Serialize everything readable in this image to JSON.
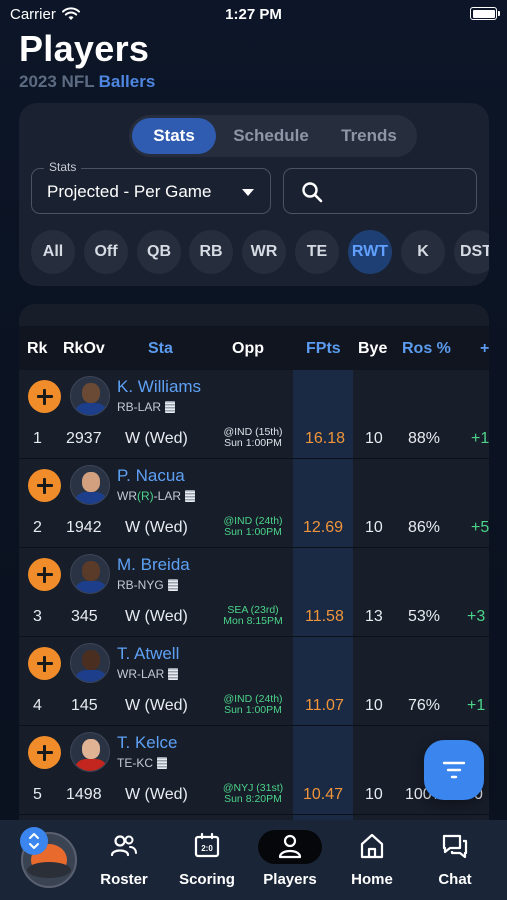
{
  "status_bar": {
    "carrier": "Carrier",
    "time": "1:27 PM"
  },
  "header": {
    "title": "Players",
    "season": "2023 NFL",
    "league": "Ballers"
  },
  "filters": {
    "tabs": [
      {
        "label": "Stats",
        "active": true
      },
      {
        "label": "Schedule",
        "active": false
      },
      {
        "label": "Trends",
        "active": false
      }
    ],
    "stats_select": {
      "label": "Stats",
      "value": "Projected - Per Game"
    },
    "search": {
      "placeholder": ""
    },
    "positions": [
      {
        "label": "All",
        "active": false
      },
      {
        "label": "Off",
        "active": false
      },
      {
        "label": "QB",
        "active": false
      },
      {
        "label": "RB",
        "active": false
      },
      {
        "label": "WR",
        "active": false
      },
      {
        "label": "TE",
        "active": false
      },
      {
        "label": "RWT",
        "active": true
      },
      {
        "label": "K",
        "active": false
      },
      {
        "label": "DST",
        "active": false
      }
    ]
  },
  "table": {
    "columns": {
      "rk": "Rk",
      "rkov": "RkOv",
      "sta": "Sta",
      "opp": "Opp",
      "fpts": "FPts",
      "bye": "Bye",
      "ros": "Ros %",
      "plus": "+/-"
    },
    "rows": [
      {
        "rk": "1",
        "rkov": "2937",
        "name": "K. Williams",
        "pos": "RB",
        "team": "LAR",
        "injury": "",
        "sta": "W (Wed)",
        "opp_line1": "@IND (15th)",
        "opp_line2": "Sun 1:00PM",
        "opp_green": false,
        "fpts": "16.18",
        "bye": "10",
        "ros": "88%",
        "change": "+1"
      },
      {
        "rk": "2",
        "rkov": "1942",
        "name": "P. Nacua",
        "pos": "WR",
        "team": "LAR",
        "injury": "(R)",
        "sta": "W (Wed)",
        "opp_line1": "@IND (24th)",
        "opp_line2": "Sun 1:00PM",
        "opp_green": true,
        "fpts": "12.69",
        "bye": "10",
        "ros": "86%",
        "change": "+5"
      },
      {
        "rk": "3",
        "rkov": "345",
        "name": "M. Breida",
        "pos": "RB",
        "team": "NYG",
        "injury": "",
        "sta": "W (Wed)",
        "opp_line1": "SEA (23rd)",
        "opp_line2": "Mon 8:15PM",
        "opp_green": true,
        "fpts": "11.58",
        "bye": "13",
        "ros": "53%",
        "change": "+3"
      },
      {
        "rk": "4",
        "rkov": "145",
        "name": "T. Atwell",
        "pos": "WR",
        "team": "LAR",
        "injury": "",
        "sta": "W (Wed)",
        "opp_line1": "@IND (24th)",
        "opp_line2": "Sun 1:00PM",
        "opp_green": true,
        "fpts": "11.07",
        "bye": "10",
        "ros": "76%",
        "change": "+1"
      },
      {
        "rk": "5",
        "rkov": "1498",
        "name": "T. Kelce",
        "pos": "TE",
        "team": "KC",
        "injury": "",
        "sta": "W (Wed)",
        "opp_line1": "@NYJ (31st)",
        "opp_line2": "Sun 8:20PM",
        "opp_green": true,
        "fpts": "10.47",
        "bye": "10",
        "ros": "100%",
        "change": "0"
      }
    ]
  },
  "tab_bar": {
    "items": [
      {
        "label": "Roster",
        "icon": "roster-icon",
        "active": false
      },
      {
        "label": "Scoring",
        "icon": "scoreboard-icon",
        "active": false
      },
      {
        "label": "Players",
        "icon": "person-icon",
        "active": true
      },
      {
        "label": "Home",
        "icon": "home-icon",
        "active": false
      },
      {
        "label": "Chat",
        "icon": "chat-icon",
        "active": false
      }
    ]
  },
  "colors": {
    "accent": "#3b86ee",
    "active_tab": "#2f5cb0",
    "fpts": "#f0953a",
    "positive": "#4cd48a",
    "add_button": "#f08d2a",
    "player_link": "#5ea1f4"
  }
}
